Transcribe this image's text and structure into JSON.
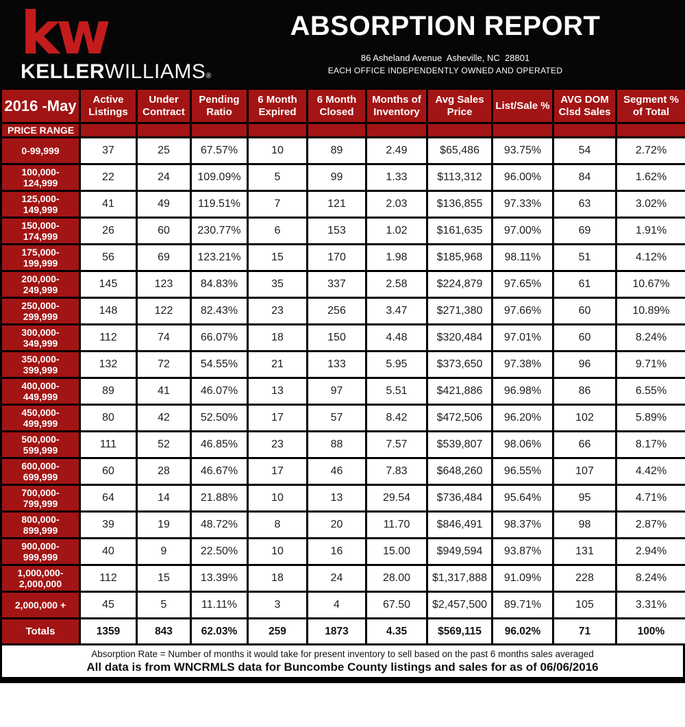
{
  "header": {
    "logo_mark": "kw",
    "logo_name_bold": "KELLER",
    "logo_name_light": "WILLIAMS",
    "logo_reg": "®",
    "title": "ABSORPTION REPORT",
    "address": "86 Asheland Avenue  Asheville, NC  28801",
    "tagline": "EACH OFFICE INDEPENDENTLY OWNED AND OPERATED"
  },
  "table": {
    "period_label": "2016 -May",
    "price_range_label": "PRICE RANGE",
    "columns": [
      "Active\nListings",
      "Under\nContract",
      "Pending\nRatio",
      "6 Month\nExpired",
      "6 Month\nClosed",
      "Months of\nInventory",
      "Avg Sales\nPrice",
      "List/Sale %",
      "AVG DOM\nClsd Sales",
      "Segment %\nof Total"
    ],
    "rows": [
      {
        "range": "0-99,999",
        "values": [
          "37",
          "25",
          "67.57%",
          "10",
          "89",
          "2.49",
          "$65,486",
          "93.75%",
          "54",
          "2.72%"
        ]
      },
      {
        "range": "100,000-\n124,999",
        "values": [
          "22",
          "24",
          "109.09%",
          "5",
          "99",
          "1.33",
          "$113,312",
          "96.00%",
          "84",
          "1.62%"
        ]
      },
      {
        "range": "125,000-\n149,999",
        "values": [
          "41",
          "49",
          "119.51%",
          "7",
          "121",
          "2.03",
          "$136,855",
          "97.33%",
          "63",
          "3.02%"
        ]
      },
      {
        "range": "150,000-\n174,999",
        "values": [
          "26",
          "60",
          "230.77%",
          "6",
          "153",
          "1.02",
          "$161,635",
          "97.00%",
          "69",
          "1.91%"
        ]
      },
      {
        "range": "175,000-\n199,999",
        "values": [
          "56",
          "69",
          "123.21%",
          "15",
          "170",
          "1.98",
          "$185,968",
          "98.11%",
          "51",
          "4.12%"
        ]
      },
      {
        "range": "200,000-\n249,999",
        "values": [
          "145",
          "123",
          "84.83%",
          "35",
          "337",
          "2.58",
          "$224,879",
          "97.65%",
          "61",
          "10.67%"
        ]
      },
      {
        "range": "250,000-\n299,999",
        "values": [
          "148",
          "122",
          "82.43%",
          "23",
          "256",
          "3.47",
          "$271,380",
          "97.66%",
          "60",
          "10.89%"
        ]
      },
      {
        "range": "300,000-\n349,999",
        "values": [
          "112",
          "74",
          "66.07%",
          "18",
          "150",
          "4.48",
          "$320,484",
          "97.01%",
          "60",
          "8.24%"
        ]
      },
      {
        "range": "350,000-\n399,999",
        "values": [
          "132",
          "72",
          "54.55%",
          "21",
          "133",
          "5.95",
          "$373,650",
          "97.38%",
          "96",
          "9.71%"
        ]
      },
      {
        "range": "400,000-\n449,999",
        "values": [
          "89",
          "41",
          "46.07%",
          "13",
          "97",
          "5.51",
          "$421,886",
          "96.98%",
          "86",
          "6.55%"
        ]
      },
      {
        "range": "450,000-\n499,999",
        "values": [
          "80",
          "42",
          "52.50%",
          "17",
          "57",
          "8.42",
          "$472,506",
          "96.20%",
          "102",
          "5.89%"
        ]
      },
      {
        "range": "500,000-\n599,999",
        "values": [
          "111",
          "52",
          "46.85%",
          "23",
          "88",
          "7.57",
          "$539,807",
          "98.06%",
          "66",
          "8.17%"
        ]
      },
      {
        "range": "600,000-\n699,999",
        "values": [
          "60",
          "28",
          "46.67%",
          "17",
          "46",
          "7.83",
          "$648,260",
          "96.55%",
          "107",
          "4.42%"
        ]
      },
      {
        "range": "700,000-\n799,999",
        "values": [
          "64",
          "14",
          "21.88%",
          "10",
          "13",
          "29.54",
          "$736,484",
          "95.64%",
          "95",
          "4.71%"
        ]
      },
      {
        "range": "800,000-\n899,999",
        "values": [
          "39",
          "19",
          "48.72%",
          "8",
          "20",
          "11.70",
          "$846,491",
          "98.37%",
          "98",
          "2.87%"
        ]
      },
      {
        "range": "900,000-\n999,999",
        "values": [
          "40",
          "9",
          "22.50%",
          "10",
          "16",
          "15.00",
          "$949,594",
          "93.87%",
          "131",
          "2.94%"
        ]
      },
      {
        "range": "1,000,000-\n2,000,000",
        "values": [
          "112",
          "15",
          "13.39%",
          "18",
          "24",
          "28.00",
          "$1,317,888",
          "91.09%",
          "228",
          "8.24%"
        ]
      },
      {
        "range": "2,000,000 +",
        "values": [
          "45",
          "5",
          "11.11%",
          "3",
          "4",
          "67.50",
          "$2,457,500",
          "89.71%",
          "105",
          "3.31%"
        ]
      }
    ],
    "totals": {
      "label": "Totals",
      "values": [
        "1359",
        "843",
        "62.03%",
        "259",
        "1873",
        "4.35",
        "$569,115",
        "96.02%",
        "71",
        "100%"
      ]
    }
  },
  "footer": {
    "note": "Absorption Rate = Number of months it would take for present inventory to sell based on the past 6 months sales averaged",
    "source": "All data is from WNCRMLS data for Buncombe County listings and sales for as of 06/06/2016"
  },
  "colors": {
    "brand_red": "#c41c1c",
    "table_red": "#a31414",
    "banner_black": "#060606"
  }
}
